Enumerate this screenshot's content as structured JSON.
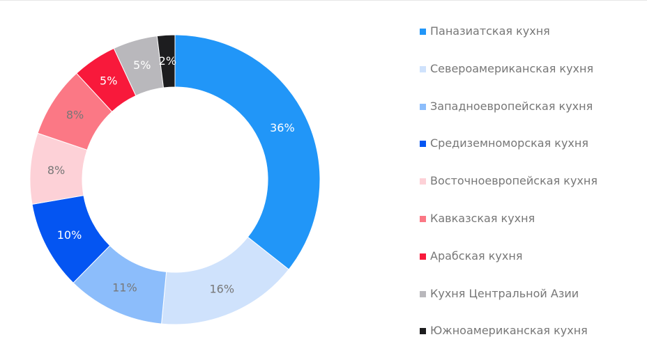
{
  "chart_data": {
    "type": "pie",
    "donut": true,
    "title": "",
    "legend_position": "right",
    "categories": [
      "Паназиатская кухня",
      "Североамериканская кухня",
      "Западноевропейская кухня",
      "Средиземноморская кухня",
      "Восточноевропейская кухня",
      "Кавказская кухня",
      "Арабская кухня",
      "Кухня Центральной Азии",
      "Южноамериканская кухня"
    ],
    "values": [
      36,
      16,
      11,
      10,
      8,
      8,
      5,
      5,
      2
    ],
    "labels": [
      "36%",
      "16%",
      "11%",
      "10%",
      "8%",
      "8%",
      "5%",
      "5%",
      "2%"
    ],
    "colors": [
      "#2196f8",
      "#cfe2fc",
      "#8cbdfb",
      "#0455f2",
      "#fdd1d7",
      "#fb7885",
      "#f8193b",
      "#b9b8bc",
      "#1d1d1f"
    ],
    "label_colors": [
      "#ffffff",
      "#777777",
      "#777777",
      "#ffffff",
      "#777777",
      "#777777",
      "#ffffff",
      "#ffffff",
      "#ffffff"
    ]
  }
}
